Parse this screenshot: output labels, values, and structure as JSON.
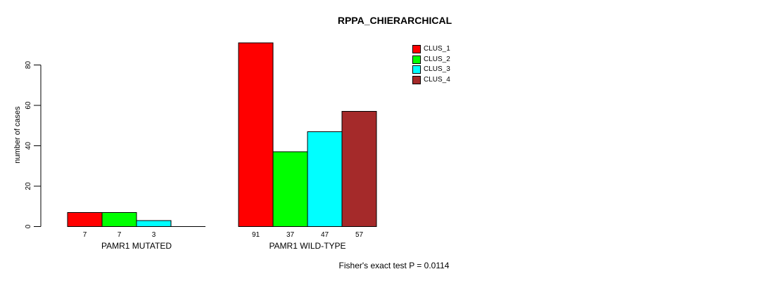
{
  "title": "RPPA_CHIERARCHICAL",
  "chart_data": {
    "type": "bar",
    "title": "RPPA_CHIERARCHICAL",
    "ylabel": "number of cases",
    "xlabel": "",
    "ylim": [
      0,
      91
    ],
    "yticks": [
      0,
      20,
      40,
      60,
      80
    ],
    "grid": false,
    "legend_position": "top-right-inside",
    "bar_value_labels_shown": true,
    "zero_bars_unlabeled": true,
    "categories": [
      "PAMR1 MUTATED",
      "PAMR1 WILD-TYPE"
    ],
    "series": [
      {
        "name": "CLUS_1",
        "color": "#FF0000",
        "values": [
          7,
          91
        ]
      },
      {
        "name": "CLUS_2",
        "color": "#00FF00",
        "values": [
          7,
          37
        ]
      },
      {
        "name": "CLUS_3",
        "color": "#00FFFF",
        "values": [
          3,
          47
        ]
      },
      {
        "name": "CLUS_4",
        "color": "#A52A2A",
        "values": [
          0,
          57
        ]
      }
    ],
    "annotation": "Fisher's exact test P = 0.0114",
    "axis_color": "#000000",
    "background_color": "#FFFFFF"
  }
}
